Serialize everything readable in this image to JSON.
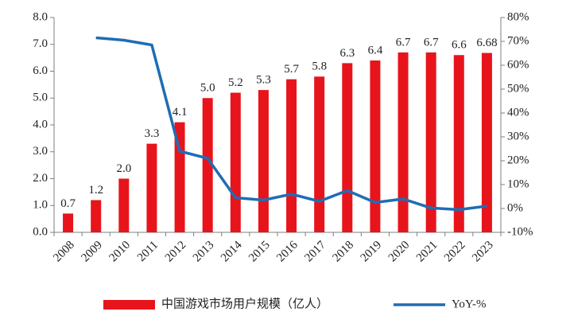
{
  "chart_data": {
    "type": "bar",
    "categories": [
      "2008",
      "2009",
      "2010",
      "2011",
      "2012",
      "2013",
      "2014",
      "2015",
      "2016",
      "2017",
      "2018",
      "2019",
      "2020",
      "2021",
      "2022",
      "2023"
    ],
    "series": [
      {
        "name": "中国游戏市场用户规模（亿人）",
        "type": "bar",
        "color": "#e8141b",
        "values": [
          0.7,
          1.2,
          2.0,
          3.3,
          4.1,
          5.0,
          5.2,
          5.3,
          5.7,
          5.8,
          6.3,
          6.4,
          6.7,
          6.7,
          6.6,
          6.68
        ],
        "value_labels": [
          "0.7",
          "1.2",
          "2.0",
          "3.3",
          "4.1",
          "5.0",
          "5.2",
          "5.3",
          "5.7",
          "5.8",
          "6.3",
          "6.4",
          "6.7",
          "6.7",
          "6.6",
          "6.68"
        ]
      },
      {
        "name": "YoY-%",
        "type": "line",
        "axis": "y2",
        "color": "#1f6db5",
        "values": [
          null,
          71.5,
          70.5,
          68.5,
          24,
          21,
          4.5,
          3.5,
          6,
          3,
          7.5,
          2.5,
          4,
          0.2,
          -0.5,
          1
        ]
      }
    ],
    "ylim": [
      0,
      8
    ],
    "yticks": [
      {
        "value": 0,
        "label": "0.0"
      },
      {
        "value": 1,
        "label": "1.0"
      },
      {
        "value": 2,
        "label": "2.0"
      },
      {
        "value": 3,
        "label": "3.0"
      },
      {
        "value": 4,
        "label": "4.0"
      },
      {
        "value": 5,
        "label": "5.0"
      },
      {
        "value": 6,
        "label": "6.0"
      },
      {
        "value": 7,
        "label": "7.0"
      },
      {
        "value": 8,
        "label": "8.0"
      }
    ],
    "y2lim": [
      -10,
      80
    ],
    "y2ticks": [
      {
        "value": -10,
        "label": "-10%"
      },
      {
        "value": 0,
        "label": "0%"
      },
      {
        "value": 10,
        "label": "10%"
      },
      {
        "value": 20,
        "label": "20%"
      },
      {
        "value": 30,
        "label": "30%"
      },
      {
        "value": 40,
        "label": "40%"
      },
      {
        "value": 50,
        "label": "50%"
      },
      {
        "value": 60,
        "label": "60%"
      },
      {
        "value": 70,
        "label": "70%"
      },
      {
        "value": 80,
        "label": "80%"
      }
    ],
    "legend": "bottom"
  }
}
